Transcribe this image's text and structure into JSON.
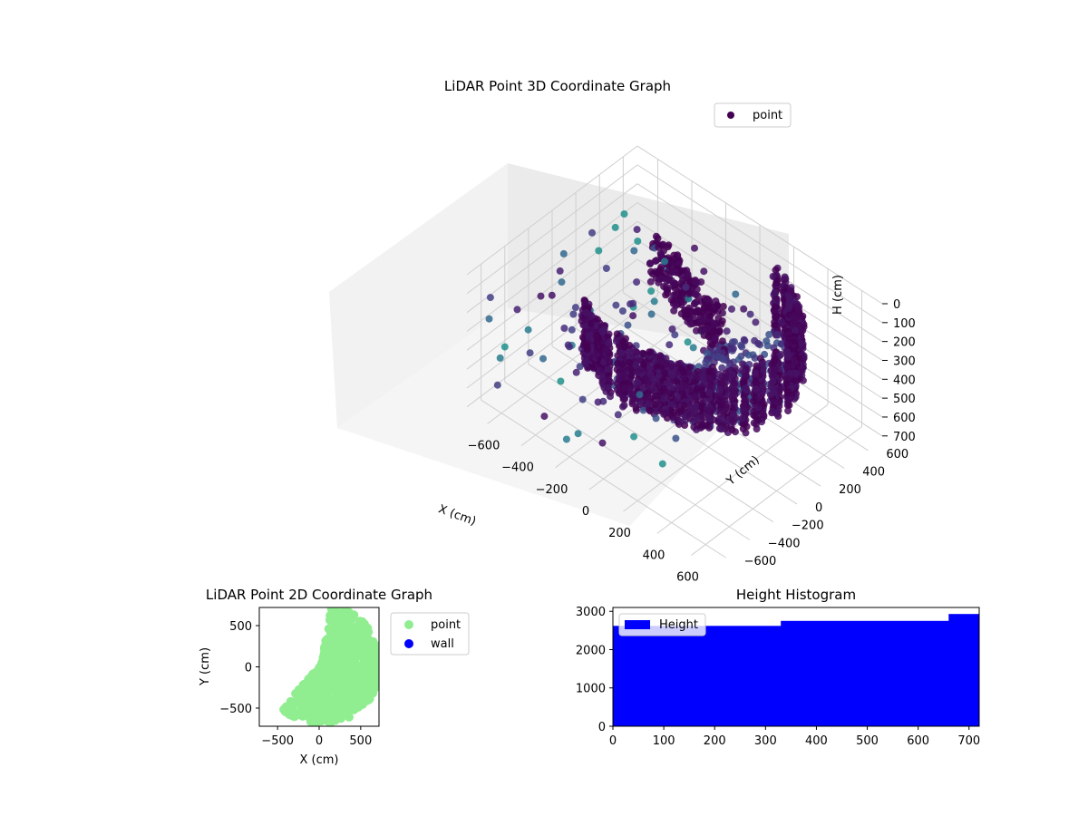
{
  "chart_data": [
    {
      "type": "scatter3d",
      "title": "LiDAR Point 3D Coordinate Graph",
      "xlabel": "X (cm)",
      "ylabel": "Y (cm)",
      "zlabel": "H (cm)",
      "x_ticks": [
        -600,
        -400,
        -200,
        0,
        200,
        400,
        600
      ],
      "y_ticks": [
        600,
        400,
        200,
        0,
        -200,
        -400,
        -600
      ],
      "z_ticks": [
        0,
        100,
        200,
        300,
        400,
        500,
        600,
        700
      ],
      "xlim": [
        -720,
        720
      ],
      "ylim": [
        -720,
        720
      ],
      "zlim": [
        0,
        720
      ],
      "z_inverted": true,
      "legend": {
        "entries": [
          "point"
        ],
        "placement": "upper-right"
      },
      "grid": true,
      "colormap": "viridis",
      "colors": {
        "marker": "#440154",
        "pane": "#f2f2f2"
      }
    },
    {
      "type": "scatter",
      "title": "LiDAR Point 2D Coordinate Graph",
      "xlabel": "X (cm)",
      "ylabel": "Y (cm)",
      "x_ticks": [
        -500,
        0,
        500
      ],
      "y_ticks": [
        500,
        0,
        -500
      ],
      "xlim": [
        -720,
        720
      ],
      "ylim": [
        -720,
        720
      ],
      "series": [
        {
          "name": "point",
          "color": "#90ee90"
        },
        {
          "name": "wall",
          "color": "#0000ff"
        }
      ],
      "legend": {
        "entries": [
          "point",
          "wall"
        ],
        "placement": "outside-right"
      }
    },
    {
      "type": "histogram",
      "title": "Height Histogram",
      "xlabel": "",
      "ylabel": "",
      "x_ticks": [
        0,
        100,
        200,
        300,
        400,
        500,
        600,
        700
      ],
      "y_ticks": [
        0,
        1000,
        2000,
        3000
      ],
      "xlim": [
        0,
        720
      ],
      "ylim": [
        0,
        3100
      ],
      "bins": [
        {
          "start": 0,
          "end": 180,
          "count": 2620
        },
        {
          "start": 180,
          "end": 330,
          "count": 2620
        },
        {
          "start": 330,
          "end": 660,
          "count": 2750
        },
        {
          "start": 660,
          "end": 720,
          "count": 2930
        }
      ],
      "color": "#0000ff",
      "legend": {
        "entries": [
          "Height"
        ],
        "placement": "upper-left"
      }
    }
  ]
}
